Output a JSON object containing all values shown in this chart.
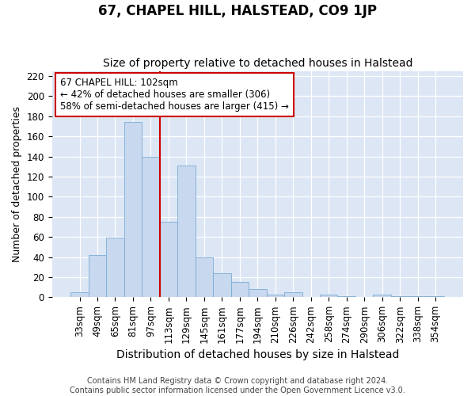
{
  "title": "67, CHAPEL HILL, HALSTEAD, CO9 1JP",
  "subtitle": "Size of property relative to detached houses in Halstead",
  "xlabel": "Distribution of detached houses by size in Halstead",
  "ylabel": "Number of detached properties",
  "categories": [
    "33sqm",
    "49sqm",
    "65sqm",
    "81sqm",
    "97sqm",
    "113sqm",
    "129sqm",
    "145sqm",
    "161sqm",
    "177sqm",
    "194sqm",
    "210sqm",
    "226sqm",
    "242sqm",
    "258sqm",
    "274sqm",
    "290sqm",
    "306sqm",
    "322sqm",
    "338sqm",
    "354sqm"
  ],
  "values": [
    5,
    42,
    59,
    174,
    140,
    75,
    131,
    40,
    24,
    15,
    8,
    3,
    5,
    0,
    3,
    1,
    0,
    3,
    1,
    1,
    1
  ],
  "bar_color": "#c8d8ee",
  "bar_edge_color": "#7aacd4",
  "vline_x": 4.5,
  "vline_color": "#cc0000",
  "annotation_text": "67 CHAPEL HILL: 102sqm\n← 42% of detached houses are smaller (306)\n58% of semi-detached houses are larger (415) →",
  "annotation_box_facecolor": "#ffffff",
  "annotation_box_edgecolor": "#cc0000",
  "ylim": [
    0,
    225
  ],
  "yticks": [
    0,
    20,
    40,
    60,
    80,
    100,
    120,
    140,
    160,
    180,
    200,
    220
  ],
  "footer_line1": "Contains HM Land Registry data © Crown copyright and database right 2024.",
  "footer_line2": "Contains public sector information licensed under the Open Government Licence v3.0.",
  "plot_bg": "#dce6f5",
  "fig_bg": "#ffffff",
  "grid_color": "#ffffff",
  "title_fontsize": 12,
  "subtitle_fontsize": 10,
  "ylabel_fontsize": 9,
  "xlabel_fontsize": 10,
  "tick_fontsize": 8.5,
  "annotation_fontsize": 8.5,
  "footer_fontsize": 7
}
